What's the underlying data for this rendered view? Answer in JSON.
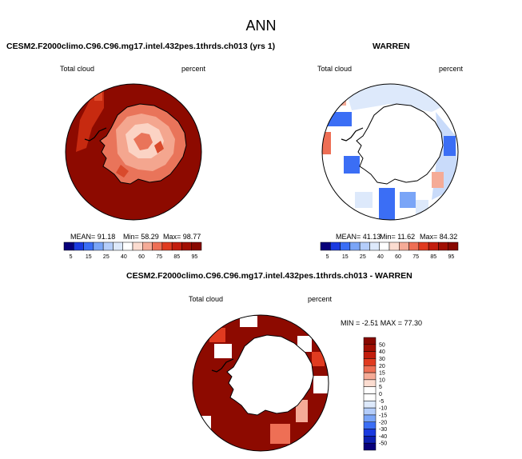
{
  "title": "ANN",
  "panels": [
    {
      "id": "test",
      "title": "CESM2.F2000climo.C96.C96.mg17.intel.432pes.1thrds.ch013 (yrs 1)",
      "variable": "Total cloud",
      "units": "percent",
      "stats": {
        "mean": "MEAN=  91.18",
        "min": "Min=  58.29",
        "max": "Max=  98.77"
      }
    },
    {
      "id": "reference",
      "title": "WARREN",
      "variable": "Total cloud",
      "units": "percent",
      "stats": {
        "mean": "MEAN=  41.13",
        "min": "Min=  11.62",
        "max": "Max=  84.32"
      }
    },
    {
      "id": "difference",
      "title": "CESM2.F2000climo.C96.C96.mg17.intel.432pes.1thrds.ch013 - WARREN",
      "variable": "Total cloud",
      "units": "percent",
      "stats": {
        "minmax": "MIN = -2.51  MAX = 77.30"
      }
    }
  ],
  "chart_data": [
    {
      "type": "heatmap",
      "projection": "south-polar-stereographic",
      "colorbar": {
        "orientation": "horizontal",
        "labels": [
          "5",
          "15",
          "25",
          "40",
          "60",
          "75",
          "85",
          "95"
        ],
        "colors": [
          "#08007a",
          "#1a3ae0",
          "#3b6ef5",
          "#7aa5f7",
          "#b4cdfa",
          "#dde9fb",
          "#ffffff",
          "#fbdcd0",
          "#f5ab97",
          "#ee6f55",
          "#e03b20",
          "#c21d0d",
          "#a10f03",
          "#880800"
        ]
      },
      "mean": 91.18,
      "min": 58.29,
      "max": 98.77
    },
    {
      "type": "heatmap",
      "projection": "south-polar-stereographic",
      "colorbar": {
        "orientation": "horizontal",
        "labels": [
          "5",
          "15",
          "25",
          "40",
          "60",
          "75",
          "85",
          "95"
        ],
        "colors": [
          "#08007a",
          "#1a3ae0",
          "#3b6ef5",
          "#7aa5f7",
          "#b4cdfa",
          "#dde9fb",
          "#ffffff",
          "#fbdcd0",
          "#f5ab97",
          "#ee6f55",
          "#e03b20",
          "#c21d0d",
          "#a10f03",
          "#880800"
        ]
      },
      "mean": 41.13,
      "min": 11.62,
      "max": 84.32
    },
    {
      "type": "heatmap",
      "projection": "south-polar-stereographic",
      "colorbar": {
        "orientation": "vertical",
        "labels": [
          "50",
          "40",
          "30",
          "20",
          "15",
          "10",
          "5",
          "0",
          "-5",
          "-10",
          "-15",
          "-20",
          "-30",
          "-40",
          "-50"
        ],
        "colors": [
          "#880800",
          "#a10f03",
          "#c21d0d",
          "#e03b20",
          "#ee6f55",
          "#f5ab97",
          "#fbdcd0",
          "#ffffff",
          "#ffffff",
          "#dde9fb",
          "#b4cdfa",
          "#7aa5f7",
          "#3b6ef5",
          "#1a3ae0",
          "#0d1fb0",
          "#08007a"
        ]
      },
      "min": -2.51,
      "max": 77.3
    }
  ]
}
